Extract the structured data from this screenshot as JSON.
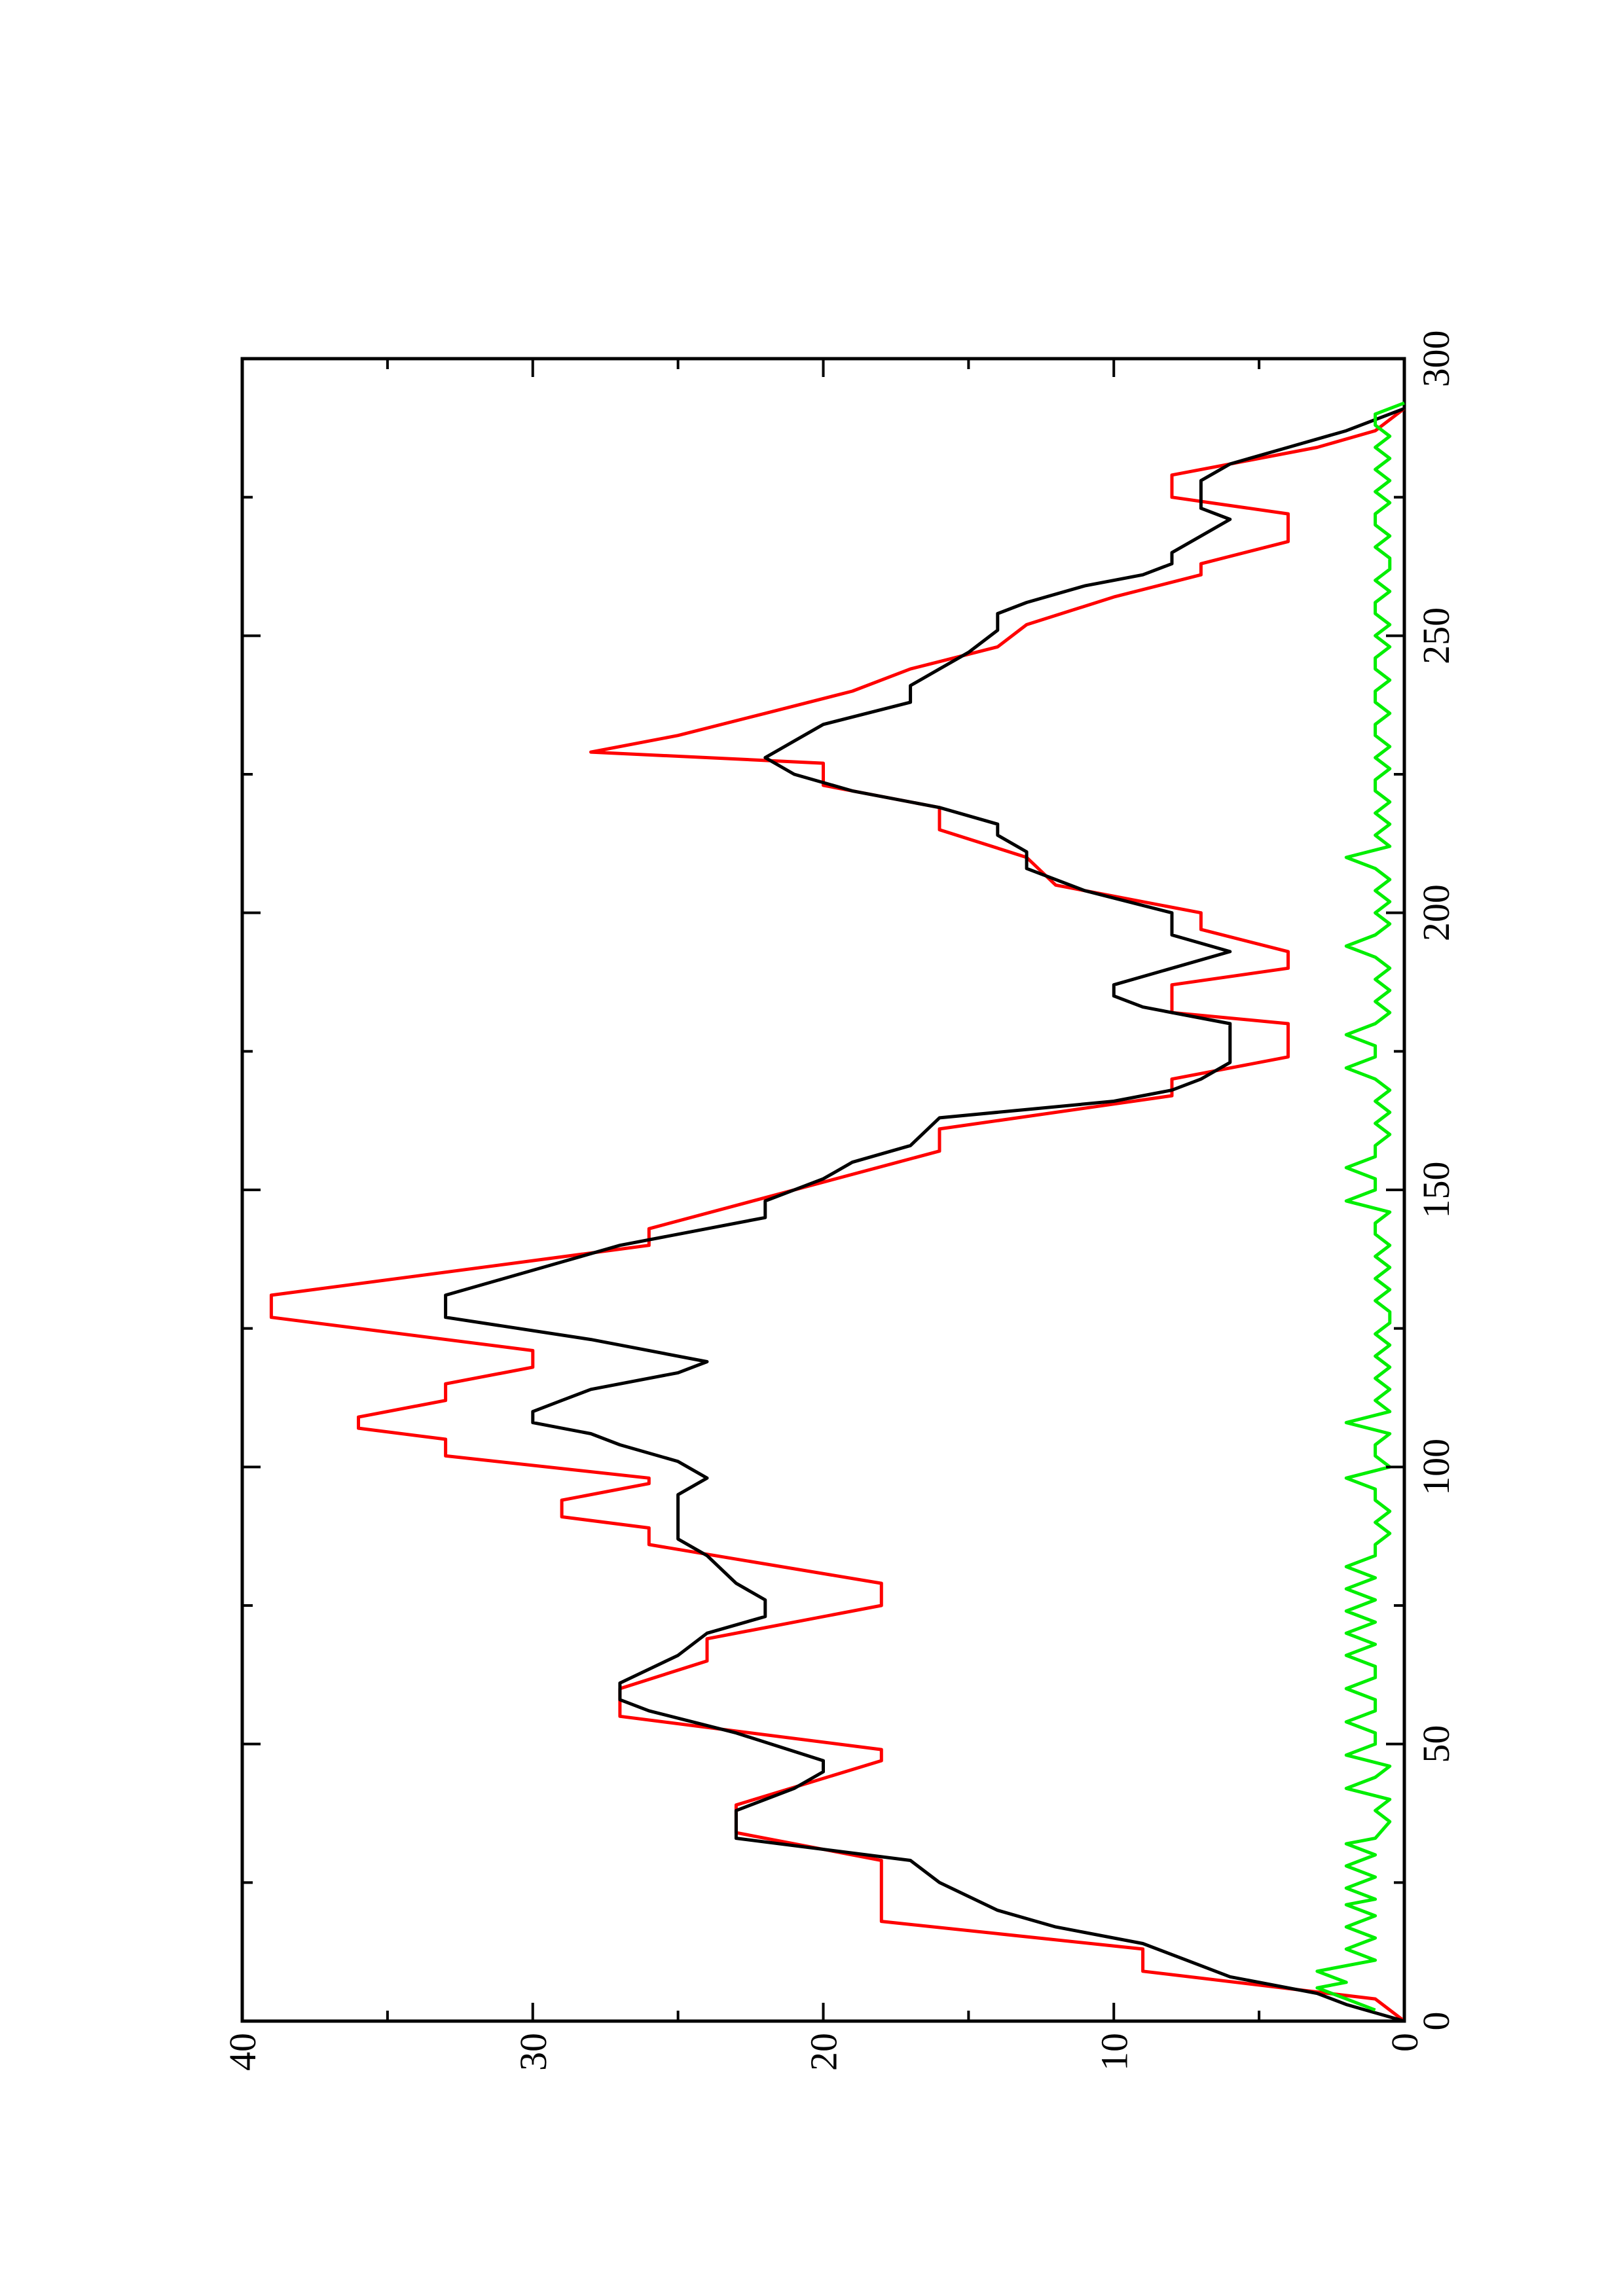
{
  "chart_data": {
    "type": "line",
    "orientation": "rotated-90-ccw",
    "title": "",
    "xlabel": "",
    "ylabel": "",
    "xlim": [
      0,
      300
    ],
    "ylim": [
      0,
      40
    ],
    "x_ticks": [
      "0",
      "50",
      "100",
      "150",
      "200",
      "250",
      "300"
    ],
    "y_ticks": [
      "0",
      "10",
      "20",
      "30",
      "40"
    ],
    "grid": false,
    "legend": "none",
    "series": [
      {
        "color": "#ff0000",
        "style": "step-like",
        "points": [
          [
            0,
            0
          ],
          [
            4,
            1
          ],
          [
            9,
            9
          ],
          [
            13,
            9
          ],
          [
            18,
            18
          ],
          [
            29,
            18
          ],
          [
            34,
            23
          ],
          [
            39,
            23
          ],
          [
            47,
            18
          ],
          [
            49,
            18
          ],
          [
            55,
            27
          ],
          [
            60,
            27
          ],
          [
            65,
            24
          ],
          [
            69,
            24
          ],
          [
            75,
            18
          ],
          [
            79,
            18
          ],
          [
            86,
            26
          ],
          [
            89,
            26
          ],
          [
            91,
            29
          ],
          [
            94,
            29
          ],
          [
            97,
            26
          ],
          [
            98,
            26
          ],
          [
            102,
            33
          ],
          [
            105,
            33
          ],
          [
            107,
            36
          ],
          [
            109,
            36
          ],
          [
            112,
            33
          ],
          [
            115,
            33
          ],
          [
            118,
            30
          ],
          [
            121,
            30
          ],
          [
            127,
            39
          ],
          [
            131,
            39
          ],
          [
            140,
            26
          ],
          [
            143,
            26
          ],
          [
            157,
            16
          ],
          [
            161,
            16
          ],
          [
            167,
            8
          ],
          [
            170,
            8
          ],
          [
            174,
            4
          ],
          [
            180,
            4
          ],
          [
            182,
            8
          ],
          [
            187,
            8
          ],
          [
            190,
            4
          ],
          [
            193,
            4
          ],
          [
            197,
            7
          ],
          [
            200,
            7
          ],
          [
            205,
            12
          ],
          [
            210,
            13
          ],
          [
            215,
            16
          ],
          [
            219,
            16
          ],
          [
            223,
            20
          ],
          [
            227,
            20
          ],
          [
            229,
            28
          ],
          [
            232,
            25
          ],
          [
            236,
            22
          ],
          [
            240,
            19
          ],
          [
            244,
            17
          ],
          [
            248,
            14
          ],
          [
            252,
            13
          ],
          [
            257,
            10
          ],
          [
            261,
            7
          ],
          [
            263,
            7
          ],
          [
            267,
            4
          ],
          [
            272,
            4
          ],
          [
            275,
            8
          ],
          [
            279,
            8
          ],
          [
            281,
            6
          ],
          [
            284,
            3
          ],
          [
            287,
            1
          ],
          [
            291,
            0
          ]
        ]
      },
      {
        "color": "#000000",
        "style": "smooth",
        "points": [
          [
            0,
            0
          ],
          [
            3,
            2
          ],
          [
            5,
            3
          ],
          [
            8,
            6
          ],
          [
            10,
            7
          ],
          [
            14,
            9
          ],
          [
            17,
            12
          ],
          [
            20,
            14
          ],
          [
            25,
            16
          ],
          [
            29,
            17
          ],
          [
            33,
            23
          ],
          [
            38,
            23
          ],
          [
            42,
            21
          ],
          [
            45,
            20
          ],
          [
            47,
            20
          ],
          [
            52,
            23
          ],
          [
            56,
            26
          ],
          [
            58,
            27
          ],
          [
            61,
            27
          ],
          [
            66,
            25
          ],
          [
            70,
            24
          ],
          [
            73,
            22
          ],
          [
            76,
            22
          ],
          [
            79,
            23
          ],
          [
            84,
            24
          ],
          [
            87,
            25
          ],
          [
            89,
            25
          ],
          [
            92,
            25
          ],
          [
            95,
            25
          ],
          [
            98,
            24
          ],
          [
            101,
            25
          ],
          [
            104,
            27
          ],
          [
            106,
            28
          ],
          [
            108,
            30
          ],
          [
            110,
            30
          ],
          [
            112,
            29
          ],
          [
            114,
            28
          ],
          [
            117,
            25
          ],
          [
            119,
            24
          ],
          [
            123,
            28
          ],
          [
            127,
            33
          ],
          [
            131,
            33
          ],
          [
            134,
            31
          ],
          [
            137,
            29
          ],
          [
            140,
            27
          ],
          [
            145,
            22
          ],
          [
            148,
            22
          ],
          [
            152,
            20
          ],
          [
            155,
            19
          ],
          [
            158,
            17
          ],
          [
            163,
            16
          ],
          [
            166,
            10
          ],
          [
            168,
            8
          ],
          [
            170,
            7
          ],
          [
            173,
            6
          ],
          [
            176,
            6
          ],
          [
            180,
            6
          ],
          [
            183,
            9
          ],
          [
            185,
            10
          ],
          [
            187,
            10
          ],
          [
            190,
            8
          ],
          [
            193,
            6
          ],
          [
            196,
            8
          ],
          [
            200,
            8
          ],
          [
            204,
            11
          ],
          [
            208,
            13
          ],
          [
            211,
            13
          ],
          [
            214,
            14
          ],
          [
            216,
            14
          ],
          [
            219,
            16
          ],
          [
            222,
            19
          ],
          [
            225,
            21
          ],
          [
            228,
            22
          ],
          [
            231,
            21
          ],
          [
            234,
            20
          ],
          [
            238,
            17
          ],
          [
            241,
            17
          ],
          [
            244,
            16
          ],
          [
            247,
            15
          ],
          [
            251,
            14
          ],
          [
            254,
            14
          ],
          [
            256,
            13
          ],
          [
            259,
            11
          ],
          [
            261,
            9
          ],
          [
            263,
            8
          ],
          [
            265,
            8
          ],
          [
            268,
            7
          ],
          [
            271,
            6
          ],
          [
            273,
            7
          ],
          [
            276,
            7
          ],
          [
            278,
            7
          ],
          [
            281,
            6
          ],
          [
            284,
            4
          ],
          [
            287,
            2
          ],
          [
            291,
            0
          ]
        ]
      },
      {
        "color": "#00ee00",
        "style": "noisy",
        "points": [
          [
            2,
            1
          ],
          [
            4,
            2
          ],
          [
            6,
            3
          ],
          [
            7,
            2
          ],
          [
            9,
            3
          ],
          [
            11,
            1
          ],
          [
            13,
            2
          ],
          [
            15,
            1
          ],
          [
            17,
            2
          ],
          [
            19,
            1
          ],
          [
            21,
            2
          ],
          [
            22,
            1
          ],
          [
            24,
            2
          ],
          [
            26,
            1
          ],
          [
            28,
            2
          ],
          [
            30,
            1
          ],
          [
            32,
            2
          ],
          [
            33,
            1
          ],
          [
            36,
            0.5
          ],
          [
            38,
            1
          ],
          [
            40,
            0.5
          ],
          [
            42,
            2
          ],
          [
            44,
            1
          ],
          [
            46,
            0.5
          ],
          [
            48,
            2
          ],
          [
            50,
            1
          ],
          [
            52,
            1
          ],
          [
            54,
            2
          ],
          [
            56,
            1
          ],
          [
            58,
            1
          ],
          [
            60,
            2
          ],
          [
            62,
            1
          ],
          [
            64,
            1
          ],
          [
            66,
            2
          ],
          [
            68,
            1
          ],
          [
            70,
            2
          ],
          [
            72,
            1
          ],
          [
            74,
            2
          ],
          [
            76,
            1
          ],
          [
            78,
            2
          ],
          [
            80,
            1
          ],
          [
            82,
            2
          ],
          [
            84,
            1
          ],
          [
            86,
            1
          ],
          [
            88,
            0.5
          ],
          [
            90,
            1
          ],
          [
            92,
            0.5
          ],
          [
            94,
            1
          ],
          [
            96,
            1
          ],
          [
            98,
            2
          ],
          [
            100,
            0.5
          ],
          [
            102,
            1
          ],
          [
            104,
            1
          ],
          [
            106,
            0.5
          ],
          [
            108,
            2
          ],
          [
            110,
            0.5
          ],
          [
            112,
            1
          ],
          [
            114,
            0.5
          ],
          [
            116,
            1
          ],
          [
            118,
            0.5
          ],
          [
            120,
            1
          ],
          [
            122,
            0.5
          ],
          [
            124,
            1
          ],
          [
            126,
            0.5
          ],
          [
            128,
            0.5
          ],
          [
            130,
            1
          ],
          [
            132,
            0.5
          ],
          [
            134,
            1
          ],
          [
            136,
            0.5
          ],
          [
            138,
            1
          ],
          [
            140,
            0.5
          ],
          [
            142,
            1
          ],
          [
            144,
            1
          ],
          [
            146,
            0.5
          ],
          [
            148,
            2
          ],
          [
            150,
            1
          ],
          [
            152,
            1
          ],
          [
            154,
            2
          ],
          [
            156,
            1
          ],
          [
            158,
            1
          ],
          [
            160,
            0.5
          ],
          [
            162,
            1
          ],
          [
            164,
            0.5
          ],
          [
            166,
            1
          ],
          [
            168,
            0.5
          ],
          [
            170,
            1
          ],
          [
            172,
            2
          ],
          [
            174,
            1
          ],
          [
            176,
            1
          ],
          [
            178,
            2
          ],
          [
            180,
            1
          ],
          [
            182,
            0.5
          ],
          [
            184,
            1
          ],
          [
            186,
            0.5
          ],
          [
            188,
            1
          ],
          [
            190,
            0.5
          ],
          [
            192,
            1
          ],
          [
            194,
            2
          ],
          [
            196,
            1
          ],
          [
            198,
            0.5
          ],
          [
            200,
            1
          ],
          [
            202,
            0.5
          ],
          [
            204,
            1
          ],
          [
            206,
            0.5
          ],
          [
            208,
            1
          ],
          [
            210,
            2
          ],
          [
            212,
            0.5
          ],
          [
            214,
            1
          ],
          [
            216,
            0.5
          ],
          [
            218,
            1
          ],
          [
            220,
            0.5
          ],
          [
            222,
            1
          ],
          [
            224,
            1
          ],
          [
            226,
            0.5
          ],
          [
            228,
            1
          ],
          [
            230,
            0.5
          ],
          [
            232,
            1
          ],
          [
            234,
            1
          ],
          [
            236,
            0.5
          ],
          [
            238,
            1
          ],
          [
            240,
            1
          ],
          [
            242,
            0.5
          ],
          [
            244,
            1
          ],
          [
            246,
            1
          ],
          [
            248,
            0.5
          ],
          [
            250,
            1
          ],
          [
            252,
            0.5
          ],
          [
            254,
            1
          ],
          [
            256,
            1
          ],
          [
            258,
            0.5
          ],
          [
            260,
            1
          ],
          [
            262,
            0.5
          ],
          [
            264,
            0.5
          ],
          [
            266,
            1
          ],
          [
            268,
            0.5
          ],
          [
            270,
            1
          ],
          [
            272,
            1
          ],
          [
            274,
            0.5
          ],
          [
            276,
            1
          ],
          [
            278,
            0.5
          ],
          [
            280,
            1
          ],
          [
            282,
            0.5
          ],
          [
            284,
            1
          ],
          [
            286,
            0.5
          ],
          [
            288,
            1
          ],
          [
            290,
            1
          ],
          [
            292,
            0
          ]
        ]
      }
    ]
  }
}
